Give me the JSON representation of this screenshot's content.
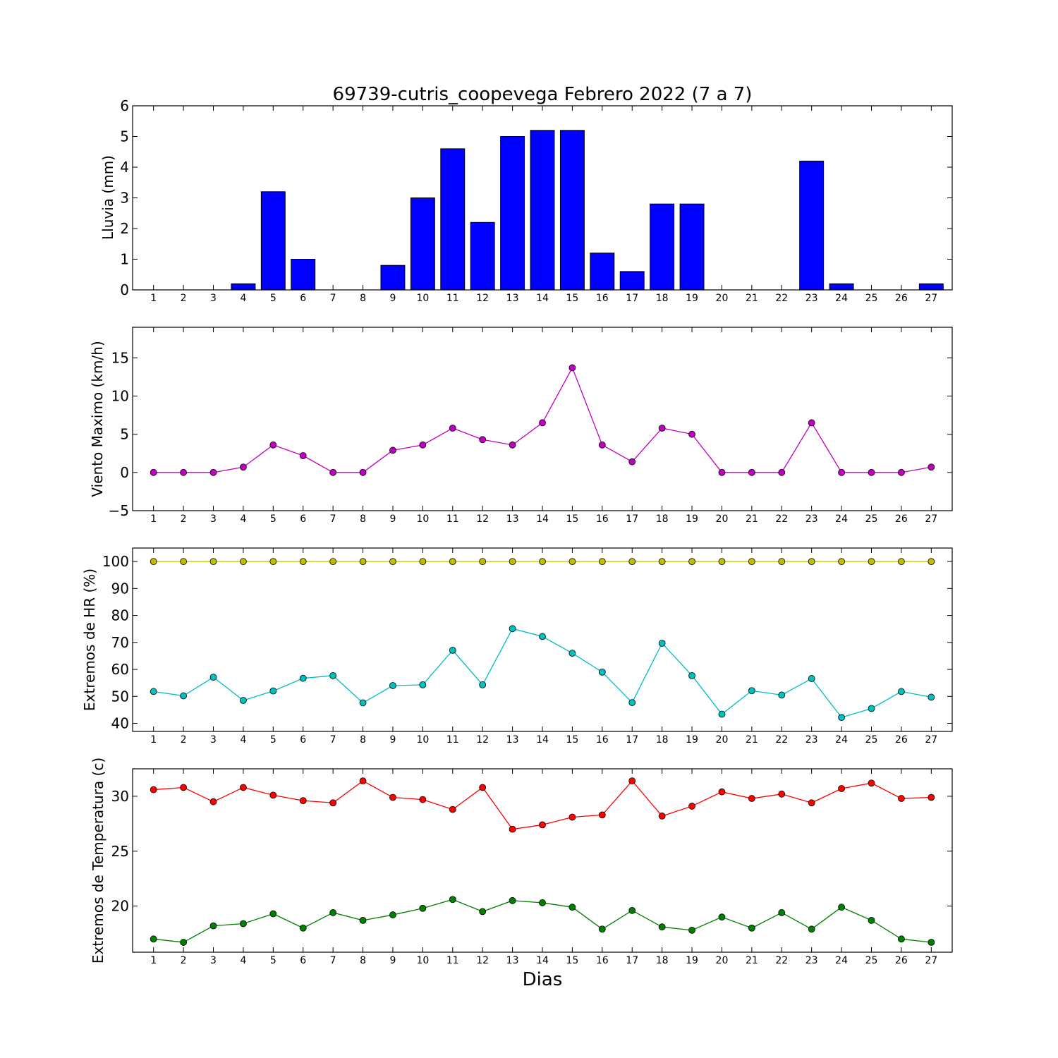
{
  "figure": {
    "title": "69739-cutris_coopevega Febrero 2022  (7 a 7)",
    "xlabel": "Dias"
  },
  "colors": {
    "rain": "#0000ff",
    "wind": "#bf00bf",
    "hr_max": "#bfbf00",
    "hr_min": "#00bfbf",
    "temp_max": "#ff0000",
    "temp_min": "#008000"
  },
  "chart_data": [
    {
      "type": "bar",
      "ylabel": "Lluvia (mm)",
      "ylim": [
        0,
        6
      ],
      "yticks": [
        0,
        1,
        2,
        3,
        4,
        5,
        6
      ],
      "categories": [
        "1",
        "2",
        "3",
        "4",
        "5",
        "6",
        "7",
        "8",
        "9",
        "10",
        "11",
        "12",
        "13",
        "14",
        "15",
        "16",
        "17",
        "18",
        "19",
        "20",
        "21",
        "22",
        "23",
        "24",
        "25",
        "26",
        "27"
      ],
      "values": [
        0,
        0,
        0,
        0.2,
        3.2,
        1.0,
        0,
        0,
        0.8,
        3.0,
        4.6,
        2.2,
        5.0,
        5.2,
        5.2,
        1.2,
        0.6,
        2.8,
        2.8,
        0,
        0,
        0,
        4.2,
        0.2,
        0,
        0,
        0.2
      ]
    },
    {
      "type": "line",
      "ylabel": "Viento Maximo (km/h)",
      "ylim": [
        -5,
        19
      ],
      "yticks": [
        -5,
        0,
        5,
        10,
        15
      ],
      "ytick_labels": [
        "−5",
        "0",
        "5",
        "10",
        "15"
      ],
      "categories": [
        "1",
        "2",
        "3",
        "4",
        "5",
        "6",
        "7",
        "8",
        "9",
        "10",
        "11",
        "12",
        "13",
        "14",
        "15",
        "16",
        "17",
        "18",
        "19",
        "20",
        "21",
        "22",
        "23",
        "24",
        "25",
        "26",
        "27"
      ],
      "series": [
        {
          "values": [
            0,
            0,
            0,
            0.7,
            3.6,
            2.2,
            0,
            0,
            2.9,
            3.6,
            5.8,
            4.3,
            3.6,
            6.5,
            13.7,
            3.6,
            1.4,
            5.8,
            5.0,
            0,
            0,
            0,
            6.5,
            0,
            0,
            0,
            0.7
          ]
        }
      ]
    },
    {
      "type": "line",
      "ylabel": "Extremos de HR (%)",
      "ylim": [
        37,
        105
      ],
      "yticks": [
        40,
        50,
        60,
        70,
        80,
        90,
        100
      ],
      "categories": [
        "1",
        "2",
        "3",
        "4",
        "5",
        "6",
        "7",
        "8",
        "9",
        "10",
        "11",
        "12",
        "13",
        "14",
        "15",
        "16",
        "17",
        "18",
        "19",
        "20",
        "21",
        "22",
        "23",
        "24",
        "25",
        "26",
        "27"
      ],
      "series": [
        {
          "values": [
            100,
            100,
            100,
            100,
            100,
            100,
            100,
            100,
            100,
            100,
            100,
            100,
            100,
            100,
            100,
            100,
            100,
            100,
            100,
            100,
            100,
            100,
            100,
            100,
            100,
            100,
            100
          ]
        },
        {
          "values": [
            51.8,
            50.2,
            57.1,
            48.5,
            52.0,
            56.7,
            57.7,
            47.6,
            54.0,
            54.3,
            67.1,
            54.3,
            75.1,
            72.2,
            66.0,
            59.0,
            47.7,
            69.7,
            57.7,
            43.4,
            52.1,
            50.5,
            56.6,
            42.2,
            45.5,
            51.8,
            49.7
          ]
        }
      ]
    },
    {
      "type": "line",
      "ylabel": "Extremos de Temperatura (c)",
      "ylim": [
        15.8,
        32.5
      ],
      "yticks": [
        20,
        25,
        30
      ],
      "categories": [
        "1",
        "2",
        "3",
        "4",
        "5",
        "6",
        "7",
        "8",
        "9",
        "10",
        "11",
        "12",
        "13",
        "14",
        "15",
        "16",
        "17",
        "18",
        "19",
        "20",
        "21",
        "22",
        "23",
        "24",
        "25",
        "26",
        "27"
      ],
      "series": [
        {
          "values": [
            30.6,
            30.8,
            29.5,
            30.8,
            30.1,
            29.6,
            29.4,
            31.4,
            29.9,
            29.7,
            28.8,
            30.8,
            27.0,
            27.4,
            28.1,
            28.3,
            31.4,
            28.2,
            29.1,
            30.4,
            29.8,
            30.2,
            29.4,
            30.7,
            31.2,
            29.8,
            29.9
          ]
        },
        {
          "values": [
            17.0,
            16.7,
            18.2,
            18.4,
            19.3,
            18.0,
            19.4,
            18.7,
            19.2,
            19.8,
            20.6,
            19.5,
            20.5,
            20.3,
            19.9,
            17.9,
            19.6,
            18.1,
            17.8,
            19.0,
            18.0,
            19.4,
            17.9,
            19.9,
            18.7,
            17.0,
            16.7
          ]
        }
      ]
    }
  ]
}
